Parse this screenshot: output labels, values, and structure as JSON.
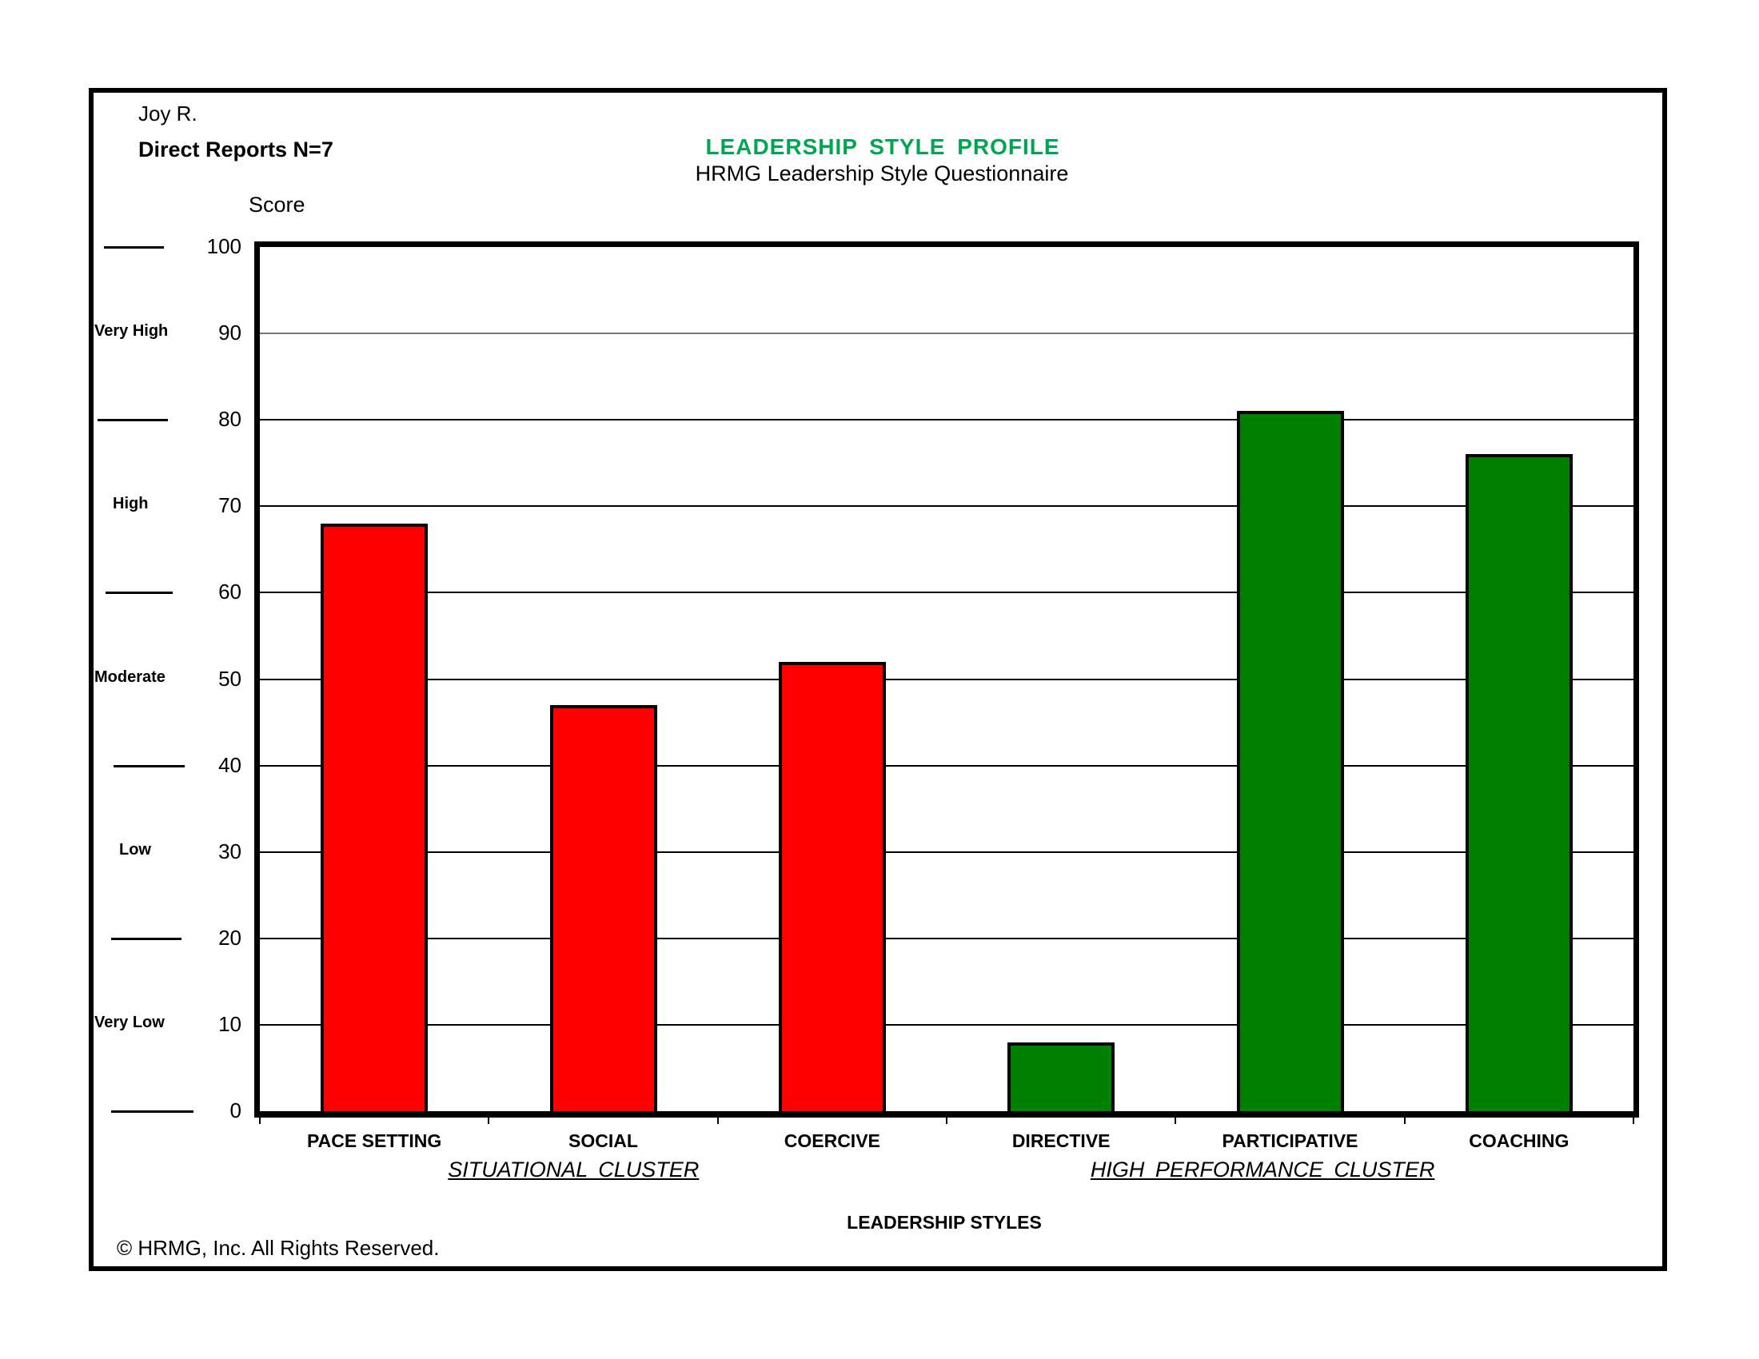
{
  "header": {
    "respondent": "Joy R.",
    "group": "Direct Reports N=7",
    "title": "LEADERSHIP  STYLE  PROFILE",
    "subtitle": "HRMG Leadership Style Questionnaire",
    "title_color": "#00A651"
  },
  "footer": {
    "copyright": "© HRMG, Inc.   All Rights Reserved."
  },
  "bands": [
    {
      "label": "Very High"
    },
    {
      "label": "High"
    },
    {
      "label": "Moderate"
    },
    {
      "label": "Low"
    },
    {
      "label": "Very Low"
    }
  ],
  "clusters": [
    {
      "label": "SITUATIONAL  CLUSTER"
    },
    {
      "label": "HIGH  PERFORMANCE   CLUSTER"
    }
  ],
  "chart_data": {
    "type": "bar",
    "title": "LEADERSHIP  STYLE  PROFILE",
    "subtitle": "HRMG Leadership Style Questionnaire",
    "xlabel": "LEADERSHIP STYLES",
    "ylabel": "Score",
    "ylim": [
      0,
      100
    ],
    "yticks": [
      "0",
      "10",
      "20",
      "30",
      "40",
      "50",
      "60",
      "70",
      "80",
      "90",
      "100"
    ],
    "grid": true,
    "legend": "none",
    "categories": [
      "PACE SETTING",
      "SOCIAL",
      "COERCIVE",
      "DIRECTIVE",
      "PARTICIPATIVE",
      "COACHING"
    ],
    "values": [
      68,
      47,
      52,
      8,
      81,
      76
    ],
    "colors": [
      "#FF0000",
      "#FF0000",
      "#FF0000",
      "#008000",
      "#008000",
      "#008000"
    ],
    "groups": [
      {
        "name": "SITUATIONAL  CLUSTER",
        "categories": [
          "PACE SETTING",
          "SOCIAL",
          "COERCIVE"
        ],
        "color": "#FF0000"
      },
      {
        "name": "HIGH  PERFORMANCE   CLUSTER",
        "categories": [
          "DIRECTIVE",
          "PARTICIPATIVE",
          "COACHING"
        ],
        "color": "#008000"
      }
    ],
    "score_bands": [
      {
        "label": "Very High",
        "range": [
          90,
          100
        ]
      },
      {
        "label": "High",
        "range": [
          60,
          80
        ]
      },
      {
        "label": "Moderate",
        "range": [
          40,
          60
        ]
      },
      {
        "label": "Low",
        "range": [
          20,
          40
        ]
      },
      {
        "label": "Very Low",
        "range": [
          0,
          20
        ]
      }
    ]
  }
}
